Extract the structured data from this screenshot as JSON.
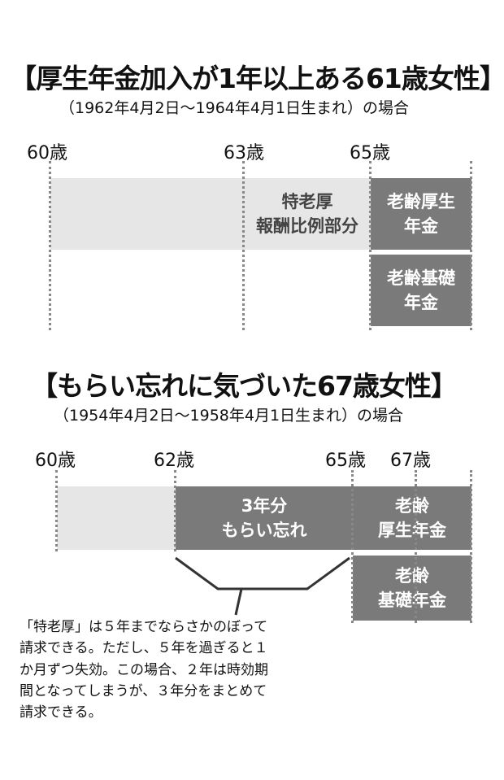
{
  "section1": {
    "title": "【厚生年金加入が1年以上ある61歳女性】",
    "subtitle": "（1962年4月2日〜1964年4月1日生まれ）の場合",
    "ages": [
      "60歳",
      "63歳",
      "65歳"
    ],
    "block_tokurou": "特老厚\n報酬比例部分",
    "block_rourei_kousei": "老齢厚生\n年金",
    "block_rourei_kiso": "老齢基礎\n年金"
  },
  "section2": {
    "title": "【もらい忘れに気づいた67歳女性】",
    "subtitle": "（1954年4月2日〜1958年4月1日生まれ）の場合",
    "ages": [
      "60歳",
      "62歳",
      "65歳",
      "67歳"
    ],
    "block_forgot": "3年分\nもらい忘れ",
    "block_rourei_kousei": "老齢\n厚生年金",
    "block_rourei_kiso": "老齢\n基礎年金",
    "note": "「特老厚」は５年までならさかのぼって\n請求できる。ただし、５年を過ぎると１\nか月ずつ失効。この場合、２年は時効期\n間となってしまうが、３年分をまとめて\n請求できる。"
  },
  "colors": {
    "light_gray": "#e6e6e6",
    "dark_gray": "#7a7a7a",
    "dotted_line": "#888888"
  }
}
